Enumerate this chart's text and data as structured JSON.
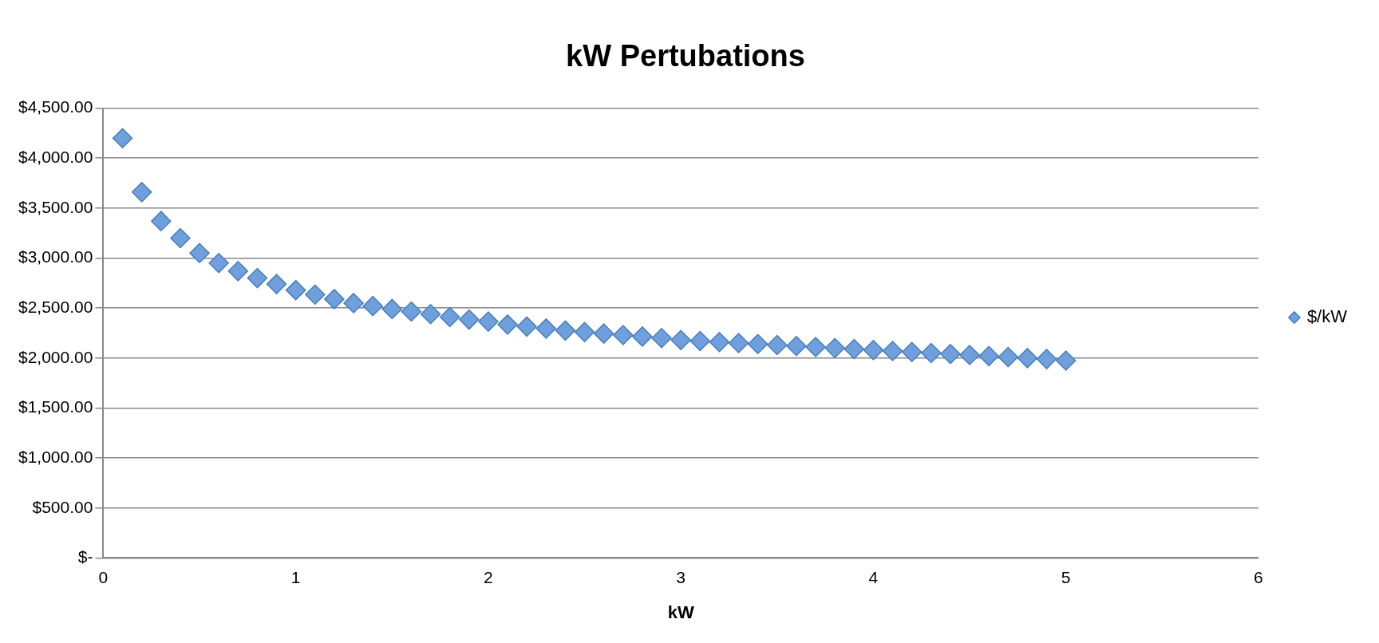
{
  "chart_data": {
    "type": "scatter",
    "title": "kW Pertubations",
    "xlabel": "kW",
    "x": [
      0.1,
      0.2,
      0.3,
      0.4,
      0.5,
      0.6,
      0.7,
      0.8,
      0.9,
      1.0,
      1.1,
      1.2,
      1.3,
      1.4,
      1.5,
      1.6,
      1.7,
      1.8,
      1.9,
      2.0,
      2.1,
      2.2,
      2.3,
      2.4,
      2.5,
      2.6,
      2.7,
      2.8,
      2.9,
      3.0,
      3.1,
      3.2,
      3.3,
      3.4,
      3.5,
      3.6,
      3.7,
      3.8,
      3.9,
      4.0,
      4.1,
      4.2,
      4.3,
      4.4,
      4.5,
      4.6,
      4.7,
      4.8,
      4.9,
      5.0
    ],
    "series": [
      {
        "name": "$/kW",
        "color": "#6f9fdc",
        "values": [
          4200,
          3660,
          3370,
          3200,
          3050,
          2950,
          2870,
          2800,
          2740,
          2680,
          2635,
          2590,
          2550,
          2520,
          2490,
          2465,
          2440,
          2410,
          2385,
          2365,
          2335,
          2315,
          2295,
          2275,
          2260,
          2245,
          2230,
          2215,
          2200,
          2180,
          2170,
          2160,
          2150,
          2140,
          2130,
          2120,
          2110,
          2100,
          2090,
          2080,
          2070,
          2060,
          2050,
          2040,
          2030,
          2020,
          2010,
          2000,
          1990,
          1975
        ]
      }
    ],
    "xlim": [
      0,
      6
    ],
    "xticks": [
      0,
      1,
      2,
      3,
      4,
      5,
      6
    ],
    "ylim": [
      0,
      4500
    ],
    "yticks": [
      {
        "value": 0,
        "label": "$-"
      },
      {
        "value": 500,
        "label": "$500.00"
      },
      {
        "value": 1000,
        "label": "$1,000.00"
      },
      {
        "value": 1500,
        "label": "$1,500.00"
      },
      {
        "value": 2000,
        "label": "$2,000.00"
      },
      {
        "value": 2500,
        "label": "$2,500.00"
      },
      {
        "value": 3000,
        "label": "$3,000.00"
      },
      {
        "value": 3500,
        "label": "$3,500.00"
      },
      {
        "value": 4000,
        "label": "$4,000.00"
      },
      {
        "value": 4500,
        "label": "$4,500.00"
      }
    ],
    "grid": "y",
    "legend": "right",
    "marker": "diamond"
  }
}
